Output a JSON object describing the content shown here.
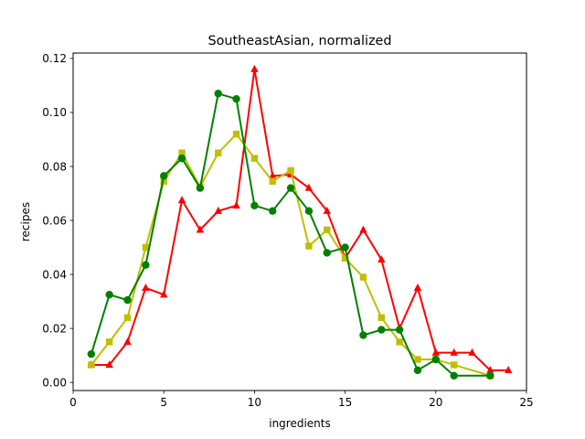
{
  "chart_data": {
    "type": "line",
    "title": "SoutheastAsian, normalized",
    "xlabel": "ingredients",
    "ylabel": "recipes",
    "xlim": [
      0,
      25
    ],
    "ylim": [
      -0.003,
      0.122
    ],
    "xticks": [
      0,
      5,
      10,
      15,
      20,
      25
    ],
    "yticks": [
      0.0,
      0.02,
      0.04,
      0.06,
      0.08,
      0.1,
      0.12
    ],
    "grid": false,
    "legend": "none",
    "series": [
      {
        "color": "#ff0000",
        "marker": "triangle",
        "points": [
          [
            1,
            0.0065
          ],
          [
            2,
            0.0065
          ],
          [
            3,
            0.015
          ],
          [
            4,
            0.035
          ],
          [
            5,
            0.0325
          ],
          [
            6,
            0.0675
          ],
          [
            7,
            0.0565
          ],
          [
            8,
            0.0635
          ],
          [
            9,
            0.0655
          ],
          [
            10,
            0.116
          ],
          [
            11,
            0.0765
          ],
          [
            12,
            0.077
          ],
          [
            13,
            0.072
          ],
          [
            14,
            0.0635
          ],
          [
            15,
            0.046
          ],
          [
            16,
            0.0565
          ],
          [
            17,
            0.0455
          ],
          [
            18,
            0.02
          ],
          [
            19,
            0.035
          ],
          [
            20,
            0.011
          ],
          [
            21,
            0.011
          ],
          [
            22,
            0.011
          ],
          [
            23,
            0.0045
          ],
          [
            24,
            0.0045
          ]
        ]
      },
      {
        "color": "#bfbf00",
        "marker": "square",
        "points": [
          [
            1,
            0.0065
          ],
          [
            2,
            0.015
          ],
          [
            3,
            0.024
          ],
          [
            4,
            0.05
          ],
          [
            5,
            0.0745
          ],
          [
            6,
            0.085
          ],
          [
            7,
            0.0725
          ],
          [
            8,
            0.085
          ],
          [
            9,
            0.092
          ],
          [
            10,
            0.083
          ],
          [
            11,
            0.0745
          ],
          [
            12,
            0.0785
          ],
          [
            13,
            0.0505
          ],
          [
            14,
            0.0565
          ],
          [
            15,
            0.046
          ],
          [
            16,
            0.039
          ],
          [
            17,
            0.024
          ],
          [
            18,
            0.015
          ],
          [
            19,
            0.0085
          ],
          [
            20,
            0.0085
          ],
          [
            21,
            0.0065
          ],
          [
            23,
            0.0025
          ]
        ]
      },
      {
        "color": "#008000",
        "marker": "circle",
        "points": [
          [
            1,
            0.0105
          ],
          [
            2,
            0.0325
          ],
          [
            3,
            0.0305
          ],
          [
            4,
            0.0435
          ],
          [
            5,
            0.0765
          ],
          [
            6,
            0.083
          ],
          [
            7,
            0.072
          ],
          [
            8,
            0.107
          ],
          [
            9,
            0.105
          ],
          [
            10,
            0.0655
          ],
          [
            11,
            0.0635
          ],
          [
            12,
            0.072
          ],
          [
            13,
            0.0635
          ],
          [
            14,
            0.048
          ],
          [
            15,
            0.05
          ],
          [
            16,
            0.0175
          ],
          [
            17,
            0.0195
          ],
          [
            18,
            0.0195
          ],
          [
            19,
            0.0045
          ],
          [
            20,
            0.0085
          ],
          [
            21,
            0.0025
          ],
          [
            23,
            0.0025
          ]
        ]
      }
    ]
  }
}
